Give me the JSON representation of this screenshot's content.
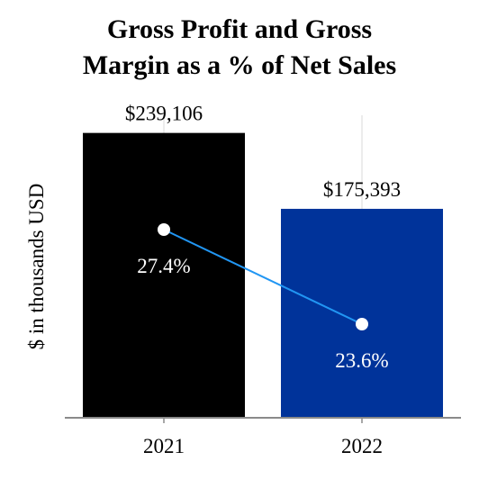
{
  "chart_data": {
    "type": "bar",
    "title_lines": [
      "Gross Profit and Gross",
      "Margin as a % of Net Sales"
    ],
    "ylabel": "$ in thousands USD",
    "categories": [
      "2021",
      "2022"
    ],
    "values": [
      239106,
      175393
    ],
    "value_labels": [
      "$239,106",
      "$175,393"
    ],
    "bar_colors": [
      "#000000",
      "#00339A"
    ],
    "margin_series": {
      "values": [
        27.4,
        23.6
      ],
      "labels": [
        "27.4%",
        "23.6%"
      ],
      "line_color": "#2196F3",
      "marker_color": "#ffffff"
    },
    "ylim": [
      0,
      260000
    ],
    "grid": "vertical"
  }
}
